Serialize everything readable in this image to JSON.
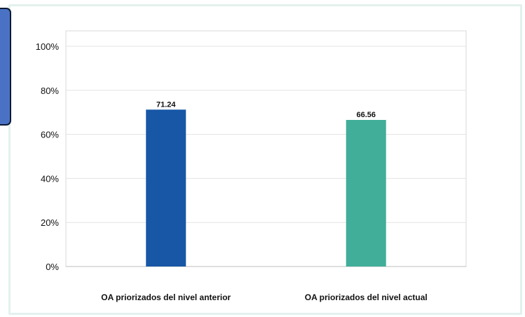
{
  "chart_data": {
    "type": "bar",
    "categories": [
      "OA priorizados del nivel anterior",
      "OA priorizados del nivel actual"
    ],
    "values": [
      71.24,
      66.56
    ],
    "value_labels": [
      "71.24",
      "66.56"
    ],
    "colors": [
      "#1757a6",
      "#40ae98"
    ],
    "ylim": [
      0,
      100
    ],
    "yticks": [
      {
        "value": 0,
        "label": "0%"
      },
      {
        "value": 20,
        "label": "20%"
      },
      {
        "value": 40,
        "label": "40%"
      },
      {
        "value": 60,
        "label": "60%"
      },
      {
        "value": 80,
        "label": "80%"
      },
      {
        "value": 100,
        "label": "100%"
      }
    ],
    "grid": true,
    "title": "",
    "xlabel": "",
    "ylabel": ""
  }
}
